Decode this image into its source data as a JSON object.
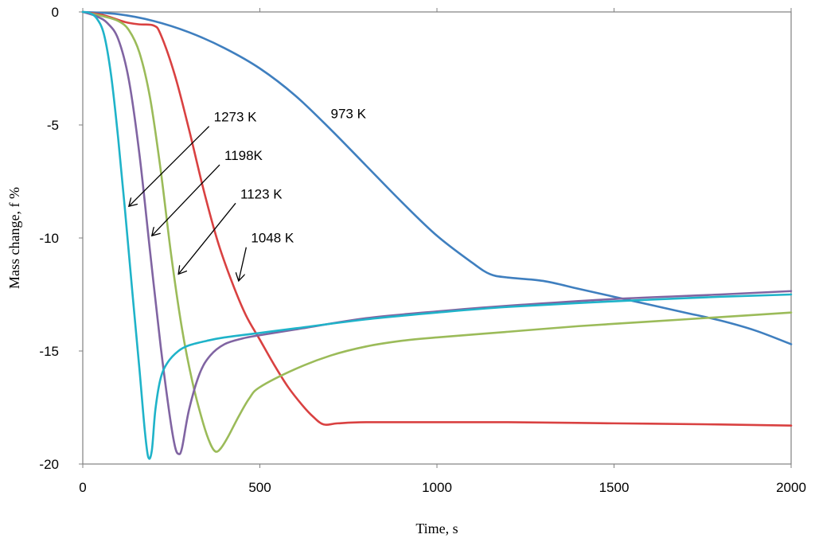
{
  "chart_data": {
    "type": "line",
    "xlabel": "Time, s",
    "ylabel": "Mass change, f %",
    "xlim": [
      0,
      2000
    ],
    "ylim": [
      -20,
      0
    ],
    "xticks": [
      "0",
      "500",
      "1000",
      "1500",
      "2000"
    ],
    "yticks": [
      "0",
      "-5",
      "-10",
      "-15",
      "-20"
    ],
    "grid": false,
    "legend": "none",
    "series": [
      {
        "name": "973 K",
        "color": "#3F7FBF",
        "points": [
          [
            0,
            0
          ],
          [
            100,
            -0.1
          ],
          [
            200,
            -0.4
          ],
          [
            300,
            -0.9
          ],
          [
            400,
            -1.6
          ],
          [
            500,
            -2.5
          ],
          [
            600,
            -3.7
          ],
          [
            700,
            -5.2
          ],
          [
            800,
            -6.8
          ],
          [
            900,
            -8.4
          ],
          [
            1000,
            -9.9
          ],
          [
            1100,
            -11.1
          ],
          [
            1150,
            -11.6
          ],
          [
            1200,
            -11.75
          ],
          [
            1300,
            -11.9
          ],
          [
            1400,
            -12.25
          ],
          [
            1500,
            -12.6
          ],
          [
            1600,
            -12.95
          ],
          [
            1700,
            -13.3
          ],
          [
            1800,
            -13.65
          ],
          [
            1900,
            -14.1
          ],
          [
            2000,
            -14.7
          ]
        ]
      },
      {
        "name": "1048 K",
        "color": "#D94141",
        "points": [
          [
            0,
            0
          ],
          [
            60,
            -0.15
          ],
          [
            120,
            -0.45
          ],
          [
            160,
            -0.55
          ],
          [
            200,
            -0.6
          ],
          [
            220,
            -1.0
          ],
          [
            260,
            -2.8
          ],
          [
            300,
            -5.2
          ],
          [
            340,
            -7.8
          ],
          [
            380,
            -10.1
          ],
          [
            420,
            -11.9
          ],
          [
            460,
            -13.4
          ],
          [
            500,
            -14.5
          ],
          [
            540,
            -15.6
          ],
          [
            580,
            -16.6
          ],
          [
            620,
            -17.4
          ],
          [
            650,
            -17.9
          ],
          [
            680,
            -18.25
          ],
          [
            720,
            -18.2
          ],
          [
            800,
            -18.15
          ],
          [
            1000,
            -18.15
          ],
          [
            1200,
            -18.15
          ],
          [
            1500,
            -18.2
          ],
          [
            1800,
            -18.25
          ],
          [
            2000,
            -18.3
          ]
        ]
      },
      {
        "name": "1123 K",
        "color": "#9BBB59",
        "points": [
          [
            0,
            0
          ],
          [
            60,
            -0.2
          ],
          [
            100,
            -0.4
          ],
          [
            130,
            -0.8
          ],
          [
            160,
            -1.8
          ],
          [
            190,
            -3.8
          ],
          [
            220,
            -7.0
          ],
          [
            250,
            -10.8
          ],
          [
            280,
            -14.0
          ],
          [
            310,
            -16.4
          ],
          [
            340,
            -18.2
          ],
          [
            360,
            -19.1
          ],
          [
            375,
            -19.45
          ],
          [
            390,
            -19.3
          ],
          [
            410,
            -18.8
          ],
          [
            440,
            -17.9
          ],
          [
            470,
            -17.1
          ],
          [
            500,
            -16.6
          ],
          [
            600,
            -15.8
          ],
          [
            700,
            -15.2
          ],
          [
            800,
            -14.8
          ],
          [
            900,
            -14.55
          ],
          [
            1000,
            -14.4
          ],
          [
            1200,
            -14.15
          ],
          [
            1400,
            -13.9
          ],
          [
            1600,
            -13.7
          ],
          [
            1800,
            -13.5
          ],
          [
            2000,
            -13.3
          ]
        ]
      },
      {
        "name": "1198K",
        "color": "#8064A2",
        "points": [
          [
            0,
            0
          ],
          [
            40,
            -0.2
          ],
          [
            70,
            -0.5
          ],
          [
            100,
            -1.2
          ],
          [
            130,
            -3.0
          ],
          [
            160,
            -6.3
          ],
          [
            190,
            -10.6
          ],
          [
            220,
            -14.8
          ],
          [
            245,
            -17.8
          ],
          [
            260,
            -19.2
          ],
          [
            270,
            -19.55
          ],
          [
            280,
            -19.3
          ],
          [
            300,
            -17.6
          ],
          [
            330,
            -16.0
          ],
          [
            360,
            -15.2
          ],
          [
            400,
            -14.7
          ],
          [
            450,
            -14.45
          ],
          [
            500,
            -14.3
          ],
          [
            600,
            -14.05
          ],
          [
            800,
            -13.55
          ],
          [
            1000,
            -13.25
          ],
          [
            1200,
            -13.0
          ],
          [
            1500,
            -12.7
          ],
          [
            1800,
            -12.5
          ],
          [
            2000,
            -12.35
          ]
        ]
      },
      {
        "name": "1273 K",
        "color": "#1FB3C9",
        "points": [
          [
            0,
            0
          ],
          [
            20,
            -0.05
          ],
          [
            40,
            -0.3
          ],
          [
            60,
            -1.0
          ],
          [
            80,
            -2.8
          ],
          [
            100,
            -5.6
          ],
          [
            120,
            -8.9
          ],
          [
            140,
            -12.4
          ],
          [
            160,
            -15.8
          ],
          [
            175,
            -18.5
          ],
          [
            185,
            -19.7
          ],
          [
            195,
            -19.4
          ],
          [
            205,
            -17.6
          ],
          [
            220,
            -16.2
          ],
          [
            240,
            -15.5
          ],
          [
            270,
            -15.0
          ],
          [
            300,
            -14.75
          ],
          [
            350,
            -14.55
          ],
          [
            400,
            -14.4
          ],
          [
            500,
            -14.2
          ],
          [
            600,
            -14.0
          ],
          [
            800,
            -13.6
          ],
          [
            1000,
            -13.3
          ],
          [
            1200,
            -13.05
          ],
          [
            1500,
            -12.8
          ],
          [
            1800,
            -12.6
          ],
          [
            2000,
            -12.5
          ]
        ]
      }
    ],
    "annotations": [
      {
        "text": "973 K",
        "x": 700,
        "y": -4.7
      },
      {
        "text": "1273 K",
        "x": 370,
        "y": -4.85,
        "arrow_to": [
          130,
          -8.6
        ]
      },
      {
        "text": "1198K",
        "x": 400,
        "y": -6.55,
        "arrow_to": [
          195,
          -9.9
        ]
      },
      {
        "text": "1123 K",
        "x": 445,
        "y": -8.25,
        "arrow_to": [
          270,
          -11.6
        ]
      },
      {
        "text": "1048 K",
        "x": 475,
        "y": -10.2,
        "arrow_to": [
          440,
          -11.9
        ]
      }
    ]
  }
}
